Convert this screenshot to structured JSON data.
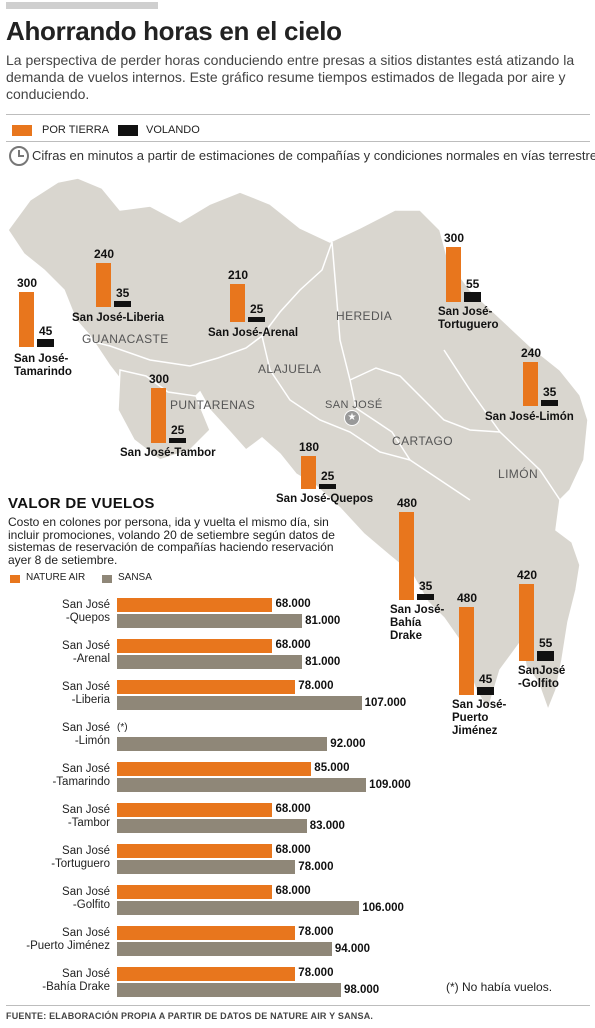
{
  "header": {
    "title": "Ahorrando horas en el cielo",
    "subtitle": "La perspectiva de perder horas conduciendo entre presas a sitios distantes está atizando la demanda de vuelos internos. Este gráfico resume tiempos estimados de llegada por aire y conduciendo."
  },
  "legend": {
    "road_label": "POR TIERRA",
    "air_label": "VOLANDO",
    "road_color": "#e8761d",
    "air_color": "#111111"
  },
  "note": "Cifras en minutos a partir de estimaciones de compañías y condiciones normales en vías terrestres",
  "map": {
    "regions": [
      "GUANACASTE",
      "ALAJUELA",
      "HEREDIA",
      "PUNTARENAS",
      "SAN JOSÉ",
      "CARTAGO",
      "LIMÓN"
    ]
  },
  "chart_data": [
    {
      "type": "bar",
      "categories": [
        "San José-Tamarindo",
        "San José-Liberia",
        "San José-Arenal",
        "San José-Tortuguero",
        "San José-Tambor",
        "San José-Limón",
        "San José-Quepos",
        "San José-Bahía Drake",
        "San José-Puerto Jiménez",
        "SanJosé-Golfito"
      ],
      "category_labels": [
        "San José-\nTamarindo",
        "San José-Liberia",
        "San José-Arenal",
        "San José-\nTortuguero",
        "San José-Tambor",
        "San José-Limón",
        "San José-Quepos",
        "San José-\nBahía\nDrake",
        "San José-\nPuerto\nJiménez",
        "SanJosé\n-Golfito"
      ],
      "series": [
        {
          "name": "POR TIERRA",
          "values": [
            300,
            240,
            210,
            300,
            300,
            240,
            180,
            480,
            480,
            420
          ]
        },
        {
          "name": "VOLANDO",
          "values": [
            45,
            35,
            25,
            55,
            25,
            35,
            25,
            35,
            45,
            55
          ]
        }
      ]
    },
    {
      "type": "bar",
      "title": "VALOR DE VUELOS",
      "subtitle": "Costo en colones por persona, ida y vuelta el mismo día, sin incluir promociones, volando 20 de setiembre según datos de sistemas de reservación de compañías haciendo reservación ayer 8 de setiembre.",
      "categories": [
        "San José\n-Quepos",
        "San José\n-Arenal",
        "San José\n-Liberia",
        "San José\n-Limón",
        "San José\n-Tamarindo",
        "San José\n-Tambor",
        "San José\n-Tortuguero",
        "San José\n-Golfito",
        "San José\n-Puerto Jiménez",
        "San José\n-Bahía Drake"
      ],
      "series": [
        {
          "name": "NATURE AIR",
          "values": [
            68000,
            68000,
            78000,
            null,
            85000,
            68000,
            68000,
            68000,
            78000,
            78000
          ],
          "labels": [
            "68.000",
            "68.000",
            "78.000",
            "(*)",
            "85.000",
            "68.000",
            "68.000",
            "68.000",
            "78.000",
            "78.000"
          ]
        },
        {
          "name": "SANSA",
          "values": [
            81000,
            81000,
            107000,
            92000,
            109000,
            83000,
            78000,
            106000,
            94000,
            98000
          ],
          "labels": [
            "81.000",
            "81.000",
            "107.000",
            "92.000",
            "109.000",
            "83.000",
            "78.000",
            "106.000",
            "94.000",
            "98.000"
          ]
        }
      ],
      "xlim": [
        0,
        120000
      ],
      "colors": {
        "NATURE AIR": "#e8761d",
        "SANSA": "#8f8778"
      }
    }
  ],
  "footnote": "(*) No había vuelos.",
  "source": "FUENTE: ELABORACIÓN PROPIA A PARTIR DE DATOS DE NATURE AIR Y SANSA."
}
